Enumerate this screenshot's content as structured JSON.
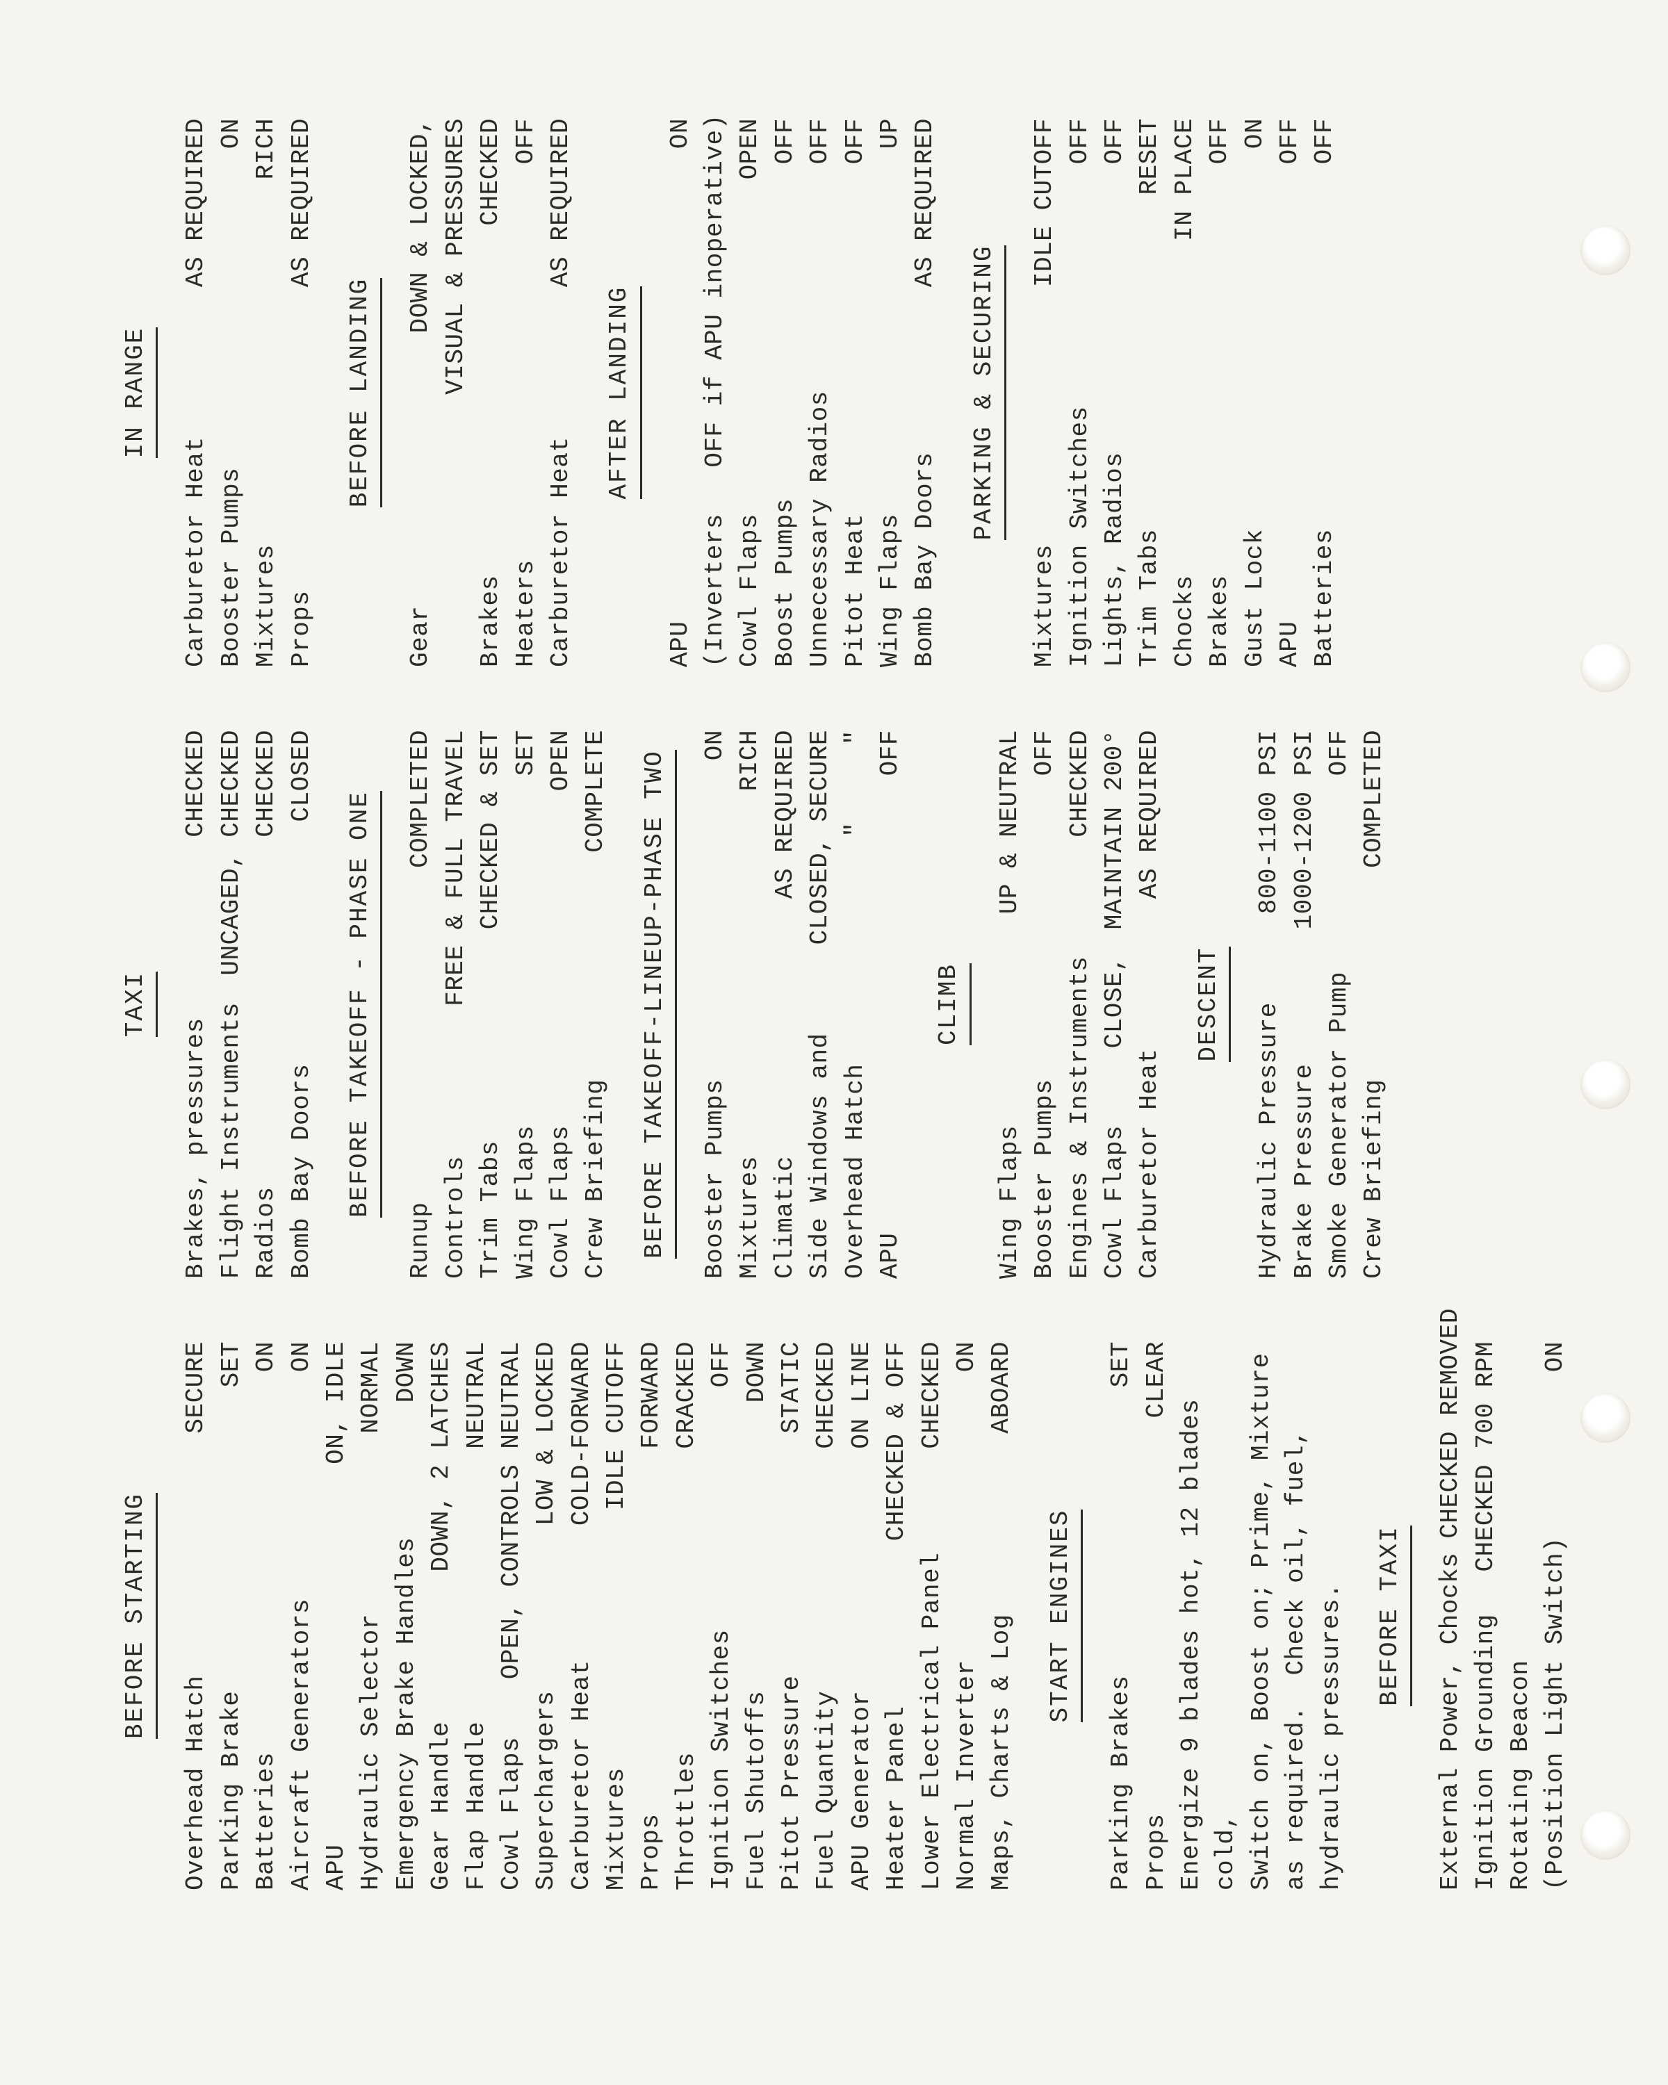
{
  "col1": {
    "sections": [
      {
        "title": "BEFORE STARTING",
        "align": "center",
        "items": [
          {
            "l": "Overhead Hatch",
            "r": "SECURE"
          },
          {
            "l": "Parking Brake",
            "r": "SET"
          },
          {
            "l": "Batteries",
            "r": "ON"
          },
          {
            "l": "Aircraft Generators",
            "r": "ON"
          },
          {
            "l": "APU",
            "r": "ON, IDLE"
          },
          {
            "l": "Hydraulic Selector",
            "r": "NORMAL"
          },
          {
            "l": "Emergency Brake Handles",
            "r": "DOWN"
          },
          {
            "l": "Gear Handle",
            "r": "DOWN, 2 LATCHES"
          },
          {
            "l": "Flap Handle",
            "r": "NEUTRAL"
          },
          {
            "l": "Cowl Flaps",
            "r": "OPEN, CONTROLS NEUTRAL"
          },
          {
            "l": "Superchargers",
            "r": "LOW & LOCKED"
          },
          {
            "l": "Carburetor Heat",
            "r": "COLD-FORWARD"
          },
          {
            "l": "Mixtures",
            "r": "IDLE CUTOFF"
          },
          {
            "l": "Props",
            "r": "FORWARD"
          },
          {
            "l": "Throttles",
            "r": "CRACKED"
          },
          {
            "l": "Ignition Switches",
            "r": "OFF"
          },
          {
            "l": "Fuel Shutoffs",
            "r": "DOWN"
          },
          {
            "l": "Pitot Pressure",
            "r": "STATIC"
          },
          {
            "l": "Fuel Quantity",
            "r": "CHECKED"
          },
          {
            "l": "APU Generator",
            "r": "ON LINE"
          },
          {
            "l": "Heater Panel",
            "r": "CHECKED & OFF"
          },
          {
            "l": "Lower Electrical Panel",
            "r": "CHECKED"
          },
          {
            "l": "Normal Inverter",
            "r": "ON"
          },
          {
            "l": "Maps, Charts & Log",
            "r": "ABOARD"
          }
        ]
      },
      {
        "title": "START ENGINES",
        "align": "center",
        "items": [
          {
            "l": "Parking Brakes",
            "r": "SET"
          },
          {
            "l": "Props",
            "r": "CLEAR"
          }
        ],
        "tail": "Energize 9 blades hot, 12 blades cold,\nSwitch on, Boost on; Prime, Mixture\nas required.  Check oil, fuel,\nhydraulic pressures."
      },
      {
        "title": "BEFORE TAXI",
        "align": "center",
        "items": [
          {
            "l": "External Power, Chocks",
            "r": "CHECKED REMOVED"
          },
          {
            "l": "Ignition Grounding",
            "r": "CHECKED 700 RPM"
          },
          {
            "l": "Rotating Beacon",
            "r": ""
          },
          {
            "l": "(Position Light Switch)",
            "r": "ON"
          }
        ]
      }
    ]
  },
  "col2": {
    "sections": [
      {
        "title": "TAXI",
        "align": "center",
        "items": [
          {
            "l": "Brakes, pressures",
            "r": "CHECKED"
          },
          {
            "l": "Flight Instruments",
            "r": "UNCAGED, CHECKED"
          },
          {
            "l": "Radios",
            "r": "CHECKED"
          },
          {
            "l": "Bomb Bay Doors",
            "r": "CLOSED"
          }
        ]
      },
      {
        "title": "BEFORE TAKEOFF - PHASE ONE",
        "align": "center",
        "items": [
          {
            "l": "Runup",
            "r": "COMPLETED"
          },
          {
            "l": "Controls",
            "r": "FREE & FULL TRAVEL"
          },
          {
            "l": "Trim Tabs",
            "r": "CHECKED & SET"
          },
          {
            "l": "Wing Flaps",
            "r": "SET"
          },
          {
            "l": "Cowl Flaps",
            "r": "OPEN"
          },
          {
            "l": "Crew Briefing",
            "r": "COMPLETE"
          }
        ]
      },
      {
        "title": "BEFORE TAKEOFF-LINEUP-PHASE TWO",
        "align": "center",
        "items": [
          {
            "l": "Booster Pumps",
            "r": "ON"
          },
          {
            "l": "Mixtures",
            "r": "RICH"
          },
          {
            "l": "Climatic",
            "r": "AS REQUIRED"
          },
          {
            "l": "Side Windows and",
            "r": "CLOSED, SECURE"
          },
          {
            "l": "Overhead Hatch",
            "r": "\"     \""
          },
          {
            "l": "APU",
            "r": "OFF"
          }
        ]
      },
      {
        "title": "CLIMB",
        "align": "center",
        "items": [
          {
            "l": "Wing Flaps",
            "r": "UP & NEUTRAL"
          },
          {
            "l": "Booster Pumps",
            "r": "OFF"
          },
          {
            "l": "Engines & Instruments",
            "r": "CHECKED"
          },
          {
            "l": "Cowl Flaps     CLOSE,",
            "r": "MAINTAIN 200°"
          },
          {
            "l": "Carburetor Heat",
            "r": "AS REQUIRED"
          }
        ]
      },
      {
        "title": "DESCENT",
        "align": "center",
        "items": [
          {
            "l": "Hydraulic Pressure",
            "r": "800-1100 PSI"
          },
          {
            "l": "Brake Pressure",
            "r": "1000-1200 PSI"
          },
          {
            "l": "Smoke Generator Pump",
            "r": "OFF"
          },
          {
            "l": "Crew Briefing",
            "r": "COMPLETED"
          }
        ]
      }
    ]
  },
  "col3": {
    "sections": [
      {
        "title": "IN RANGE",
        "align": "center",
        "items": [
          {
            "l": "Carburetor Heat",
            "r": "AS REQUIRED"
          },
          {
            "l": "Booster Pumps",
            "r": "ON"
          },
          {
            "l": "Mixtures",
            "r": "RICH"
          },
          {
            "l": "Props",
            "r": "AS REQUIRED"
          }
        ]
      },
      {
        "title": "BEFORE LANDING",
        "align": "center",
        "items": [
          {
            "l": "Gear",
            "r": "DOWN & LOCKED,"
          },
          {
            "l": "",
            "r": "VISUAL & PRESSURES"
          },
          {
            "l": "Brakes",
            "r": "CHECKED"
          },
          {
            "l": "Heaters",
            "r": "OFF"
          },
          {
            "l": "Carburetor Heat",
            "r": "AS REQUIRED"
          }
        ]
      },
      {
        "title": "AFTER LANDING",
        "align": "center",
        "items": [
          {
            "l": "APU",
            "r": "ON"
          },
          {
            "l": "(Inverters   OFF if APU inoperative)",
            "r": ""
          },
          {
            "l": "Cowl Flaps",
            "r": "OPEN"
          },
          {
            "l": "Boost Pumps",
            "r": "OFF"
          },
          {
            "l": "Unnecessary Radios",
            "r": "OFF"
          },
          {
            "l": "Pitot Heat",
            "r": "OFF"
          },
          {
            "l": "Wing Flaps",
            "r": "UP"
          },
          {
            "l": "Bomb Bay Doors",
            "r": "AS REQUIRED"
          }
        ]
      },
      {
        "title": "PARKING & SECURING",
        "align": "center",
        "items": [
          {
            "l": "Mixtures",
            "r": "IDLE CUTOFF"
          },
          {
            "l": "Ignition Switches",
            "r": "OFF"
          },
          {
            "l": "Lights, Radios",
            "r": "OFF"
          },
          {
            "l": "Trim Tabs",
            "r": "RESET"
          },
          {
            "l": "Chocks",
            "r": "IN PLACE"
          },
          {
            "l": "Brakes",
            "r": "OFF"
          },
          {
            "l": "Gust Lock",
            "r": "ON"
          },
          {
            "l": "APU",
            "r": "OFF"
          },
          {
            "l": "Batteries",
            "r": "OFF"
          }
        ]
      }
    ]
  },
  "holes_y": [
    360,
    960,
    1560,
    2040,
    2640
  ]
}
